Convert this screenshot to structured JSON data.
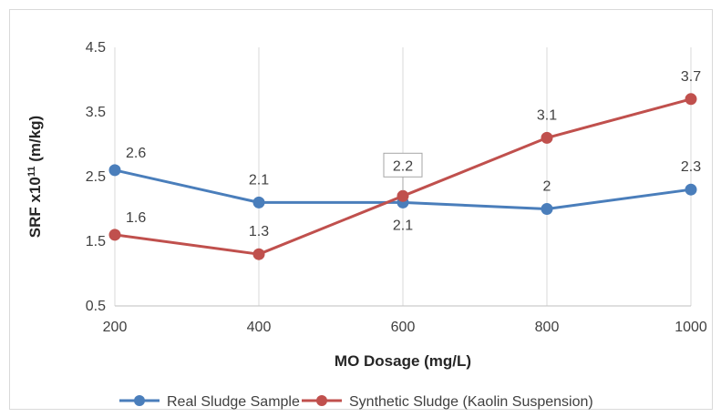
{
  "chart_data": {
    "type": "line",
    "x": [
      200,
      400,
      600,
      800,
      1000
    ],
    "xlabel": "MO Dosage (mg/L)",
    "ylabel_main": "SRF x10",
    "ylabel_sup": "11",
    "ylabel_unit": " (m/kg)",
    "ylim": [
      0.5,
      4.5
    ],
    "yticks": [
      0.5,
      1.5,
      2.5,
      3.5,
      4.5
    ],
    "ytick_labels": [
      "0.5",
      "1.5",
      "2.5",
      "3.5",
      "4.5"
    ],
    "xtick_labels": [
      "200",
      "400",
      "600",
      "800",
      "1000"
    ],
    "grid": "vertical",
    "legend_position": "bottom",
    "series": [
      {
        "name": "Real Sludge Sample",
        "color": "#4a7ebb",
        "values": [
          2.6,
          2.1,
          2.1,
          2.0,
          2.3
        ],
        "labels": [
          "2.6",
          "2.1",
          "2.1",
          "2",
          "2.3"
        ],
        "label_positions": [
          "right",
          "above",
          "below",
          "above",
          "above"
        ]
      },
      {
        "name": "Synthetic Sludge (Kaolin Suspension)",
        "color": "#c0504d",
        "values": [
          1.6,
          1.3,
          2.2,
          3.1,
          3.7
        ],
        "labels": [
          "1.6",
          "1.3",
          "2.2",
          "3.1",
          "3.7"
        ],
        "label_positions": [
          "right",
          "above",
          "boxed-above",
          "above",
          "above"
        ]
      }
    ]
  }
}
